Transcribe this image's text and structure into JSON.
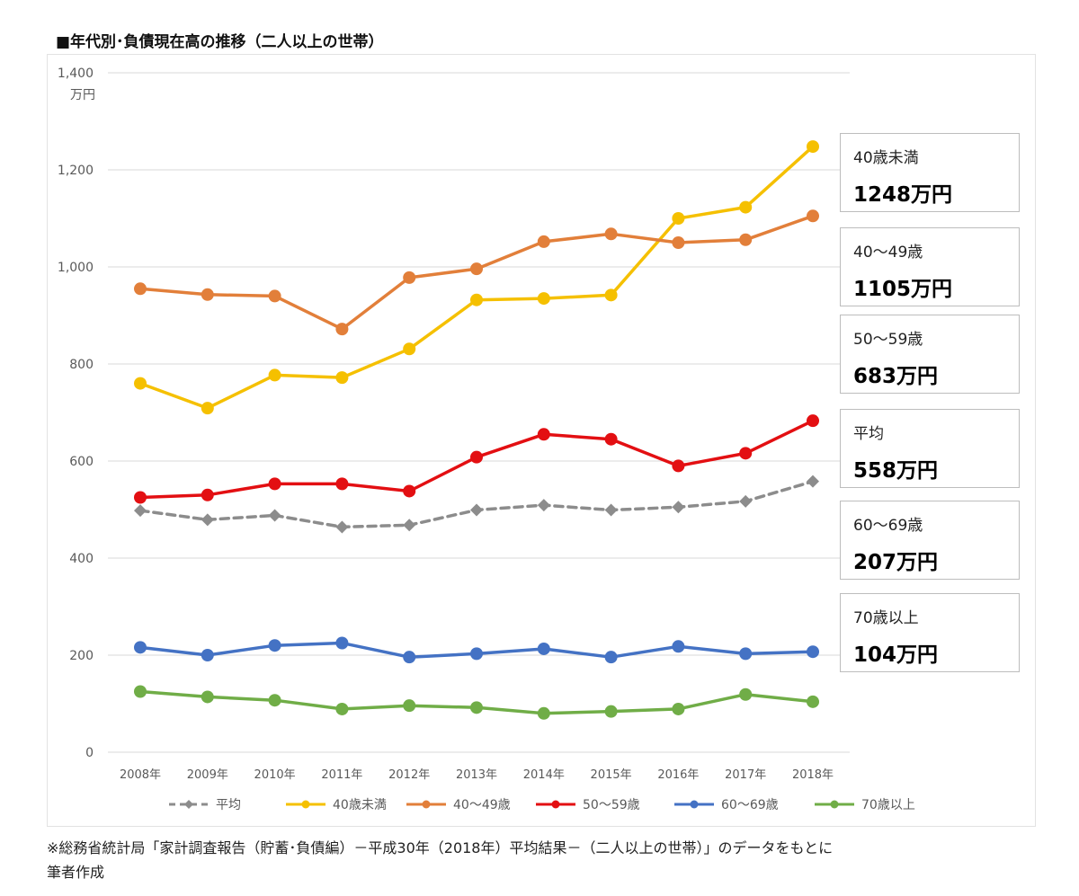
{
  "title": "■年代別･負債現在高の推移（二人以上の世帯）",
  "chart_data": {
    "type": "line",
    "ylabel": "万円",
    "ylim": [
      0,
      1400
    ],
    "yticks": [
      0,
      200,
      400,
      600,
      800,
      1000,
      1200,
      1400
    ],
    "ytick_labels": [
      "0",
      "200",
      "400",
      "600",
      "800",
      "1,000",
      "1,200",
      "1,400"
    ],
    "categories": [
      "2008年",
      "2009年",
      "2010年",
      "2011年",
      "2012年",
      "2013年",
      "2014年",
      "2015年",
      "2016年",
      "2017年",
      "2018年"
    ],
    "grid": true,
    "legend_position": "bottom",
    "series": [
      {
        "name": "平均",
        "color": "#8c8c8c",
        "dashed": true,
        "marker": "diamond",
        "values": [
          498,
          479,
          488,
          464,
          468,
          499,
          509,
          499,
          505,
          517,
          558
        ]
      },
      {
        "name": "40歳未満",
        "color": "#f5c000",
        "dashed": false,
        "marker": "circle",
        "values": [
          760,
          709,
          777,
          772,
          831,
          932,
          935,
          942,
          1100,
          1123,
          1248
        ]
      },
      {
        "name": "40～49歳",
        "color": "#e27f3a",
        "dashed": false,
        "marker": "circle",
        "values": [
          955,
          943,
          940,
          872,
          978,
          996,
          1052,
          1068,
          1050,
          1056,
          1105
        ]
      },
      {
        "name": "50～59歳",
        "color": "#e30f12",
        "dashed": false,
        "marker": "circle",
        "values": [
          525,
          530,
          553,
          553,
          538,
          608,
          655,
          645,
          590,
          616,
          683
        ]
      },
      {
        "name": "60～69歳",
        "color": "#4472c4",
        "dashed": false,
        "marker": "circle",
        "values": [
          216,
          200,
          220,
          225,
          196,
          203,
          213,
          196,
          218,
          203,
          207
        ]
      },
      {
        "name": "70歳以上",
        "color": "#70ad47",
        "dashed": false,
        "marker": "circle",
        "values": [
          125,
          114,
          107,
          89,
          96,
          92,
          80,
          84,
          89,
          119,
          104
        ]
      }
    ]
  },
  "callouts": [
    {
      "name": "40歳未満",
      "value": "1248万円"
    },
    {
      "name": "40～49歳",
      "value": "1105万円"
    },
    {
      "name": "50～59歳",
      "value": "683万円"
    },
    {
      "name": "平均",
      "value": "558万円"
    },
    {
      "name": "60～69歳",
      "value": "207万円"
    },
    {
      "name": "70歳以上",
      "value": "104万円"
    }
  ],
  "source_note": {
    "line1": "※総務省統計局「家計調査報告（貯蓄･負債編）－平成30年（2018年）平均結果－（二人以上の世帯）」のデータをもとに",
    "line2": "筆者作成"
  }
}
